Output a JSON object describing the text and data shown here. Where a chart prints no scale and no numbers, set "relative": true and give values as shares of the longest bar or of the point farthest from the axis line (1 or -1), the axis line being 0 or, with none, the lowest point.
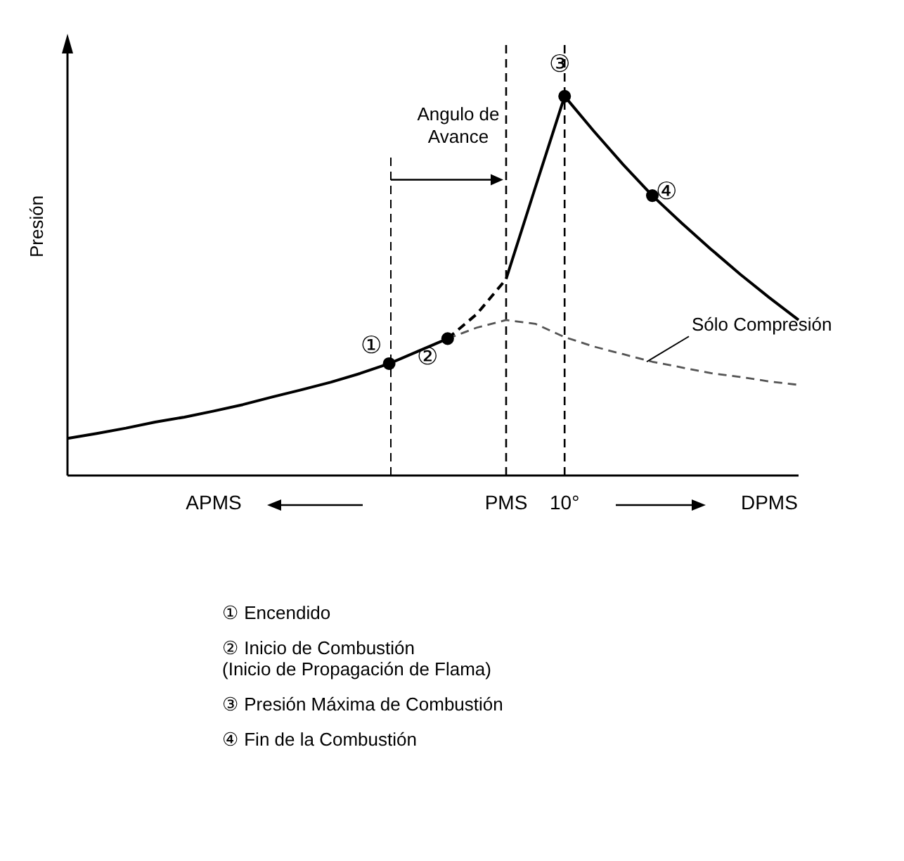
{
  "chart_data": {
    "type": "line",
    "relative": true,
    "ylabel": "Presión",
    "categories": [
      null,
      null,
      null,
      null,
      null,
      "APMS",
      null,
      null,
      null,
      null,
      null,
      null,
      null,
      null,
      null,
      "PMS",
      null,
      "10°",
      null,
      null,
      null,
      null,
      null,
      null,
      "DPMS",
      null
    ],
    "series": [
      {
        "color": "#000000",
        "line_style": "solid",
        "values": [
          0.098,
          0.111,
          0.125,
          0.141,
          0.154,
          0.17,
          0.187,
          0.207,
          0.226,
          0.246,
          0.269,
          0.295,
          0.328,
          0.361,
          null,
          null,
          null,
          null,
          null,
          null,
          null,
          null,
          null,
          null,
          null,
          null
        ]
      },
      {
        "color": "#000000",
        "line_style": "dashed",
        "values": [
          null,
          null,
          null,
          null,
          null,
          null,
          null,
          null,
          null,
          null,
          null,
          null,
          null,
          0.361,
          0.426,
          0.518,
          null,
          null,
          null,
          null,
          null,
          null,
          null,
          null,
          null,
          null
        ]
      },
      {
        "color": "#000000",
        "line_style": "solid",
        "values": [
          null,
          null,
          null,
          null,
          null,
          null,
          null,
          null,
          null,
          null,
          null,
          null,
          null,
          null,
          null,
          0.518,
          0.76,
          1,
          0.908,
          0.82,
          0.738,
          0.666,
          0.597,
          0.531,
          0.469,
          0.41
        ]
      },
      {
        "name": "Sólo Compresión",
        "color": "#555555",
        "line_style": "dashed",
        "values": [
          null,
          null,
          null,
          null,
          null,
          null,
          null,
          null,
          null,
          null,
          null,
          null,
          null,
          0.361,
          0.39,
          0.41,
          0.4,
          0.365,
          0.34,
          0.32,
          0.3,
          0.285,
          0.27,
          0.26,
          0.248,
          0.239
        ]
      },
      {
        "type": "scatter",
        "marker": "circle",
        "color": "#000000",
        "values": [
          null,
          null,
          null,
          null,
          null,
          null,
          null,
          null,
          null,
          null,
          null,
          0.295,
          null,
          0.361,
          null,
          null,
          null,
          1,
          null,
          null,
          0.738,
          null,
          null,
          null,
          null,
          null
        ]
      }
    ],
    "ref_lines": [
      {
        "axis": "x",
        "value": "PMS",
        "color": "#000000",
        "line_style": "dashed"
      },
      {
        "axis": "x",
        "value": "10°",
        "color": "#000000",
        "line_style": "dashed"
      }
    ],
    "annotations": [
      "①",
      "②",
      {
        "text": "③",
        "x": "10°",
        "y": 1
      },
      "④",
      "Angulo de Avance",
      "① Encendido",
      "② Inicio de Combustión\n(Inicio de Propagación de Flama)",
      "③ Presión Máxima de Combustión",
      "④ Fin de la Combustión"
    ]
  }
}
